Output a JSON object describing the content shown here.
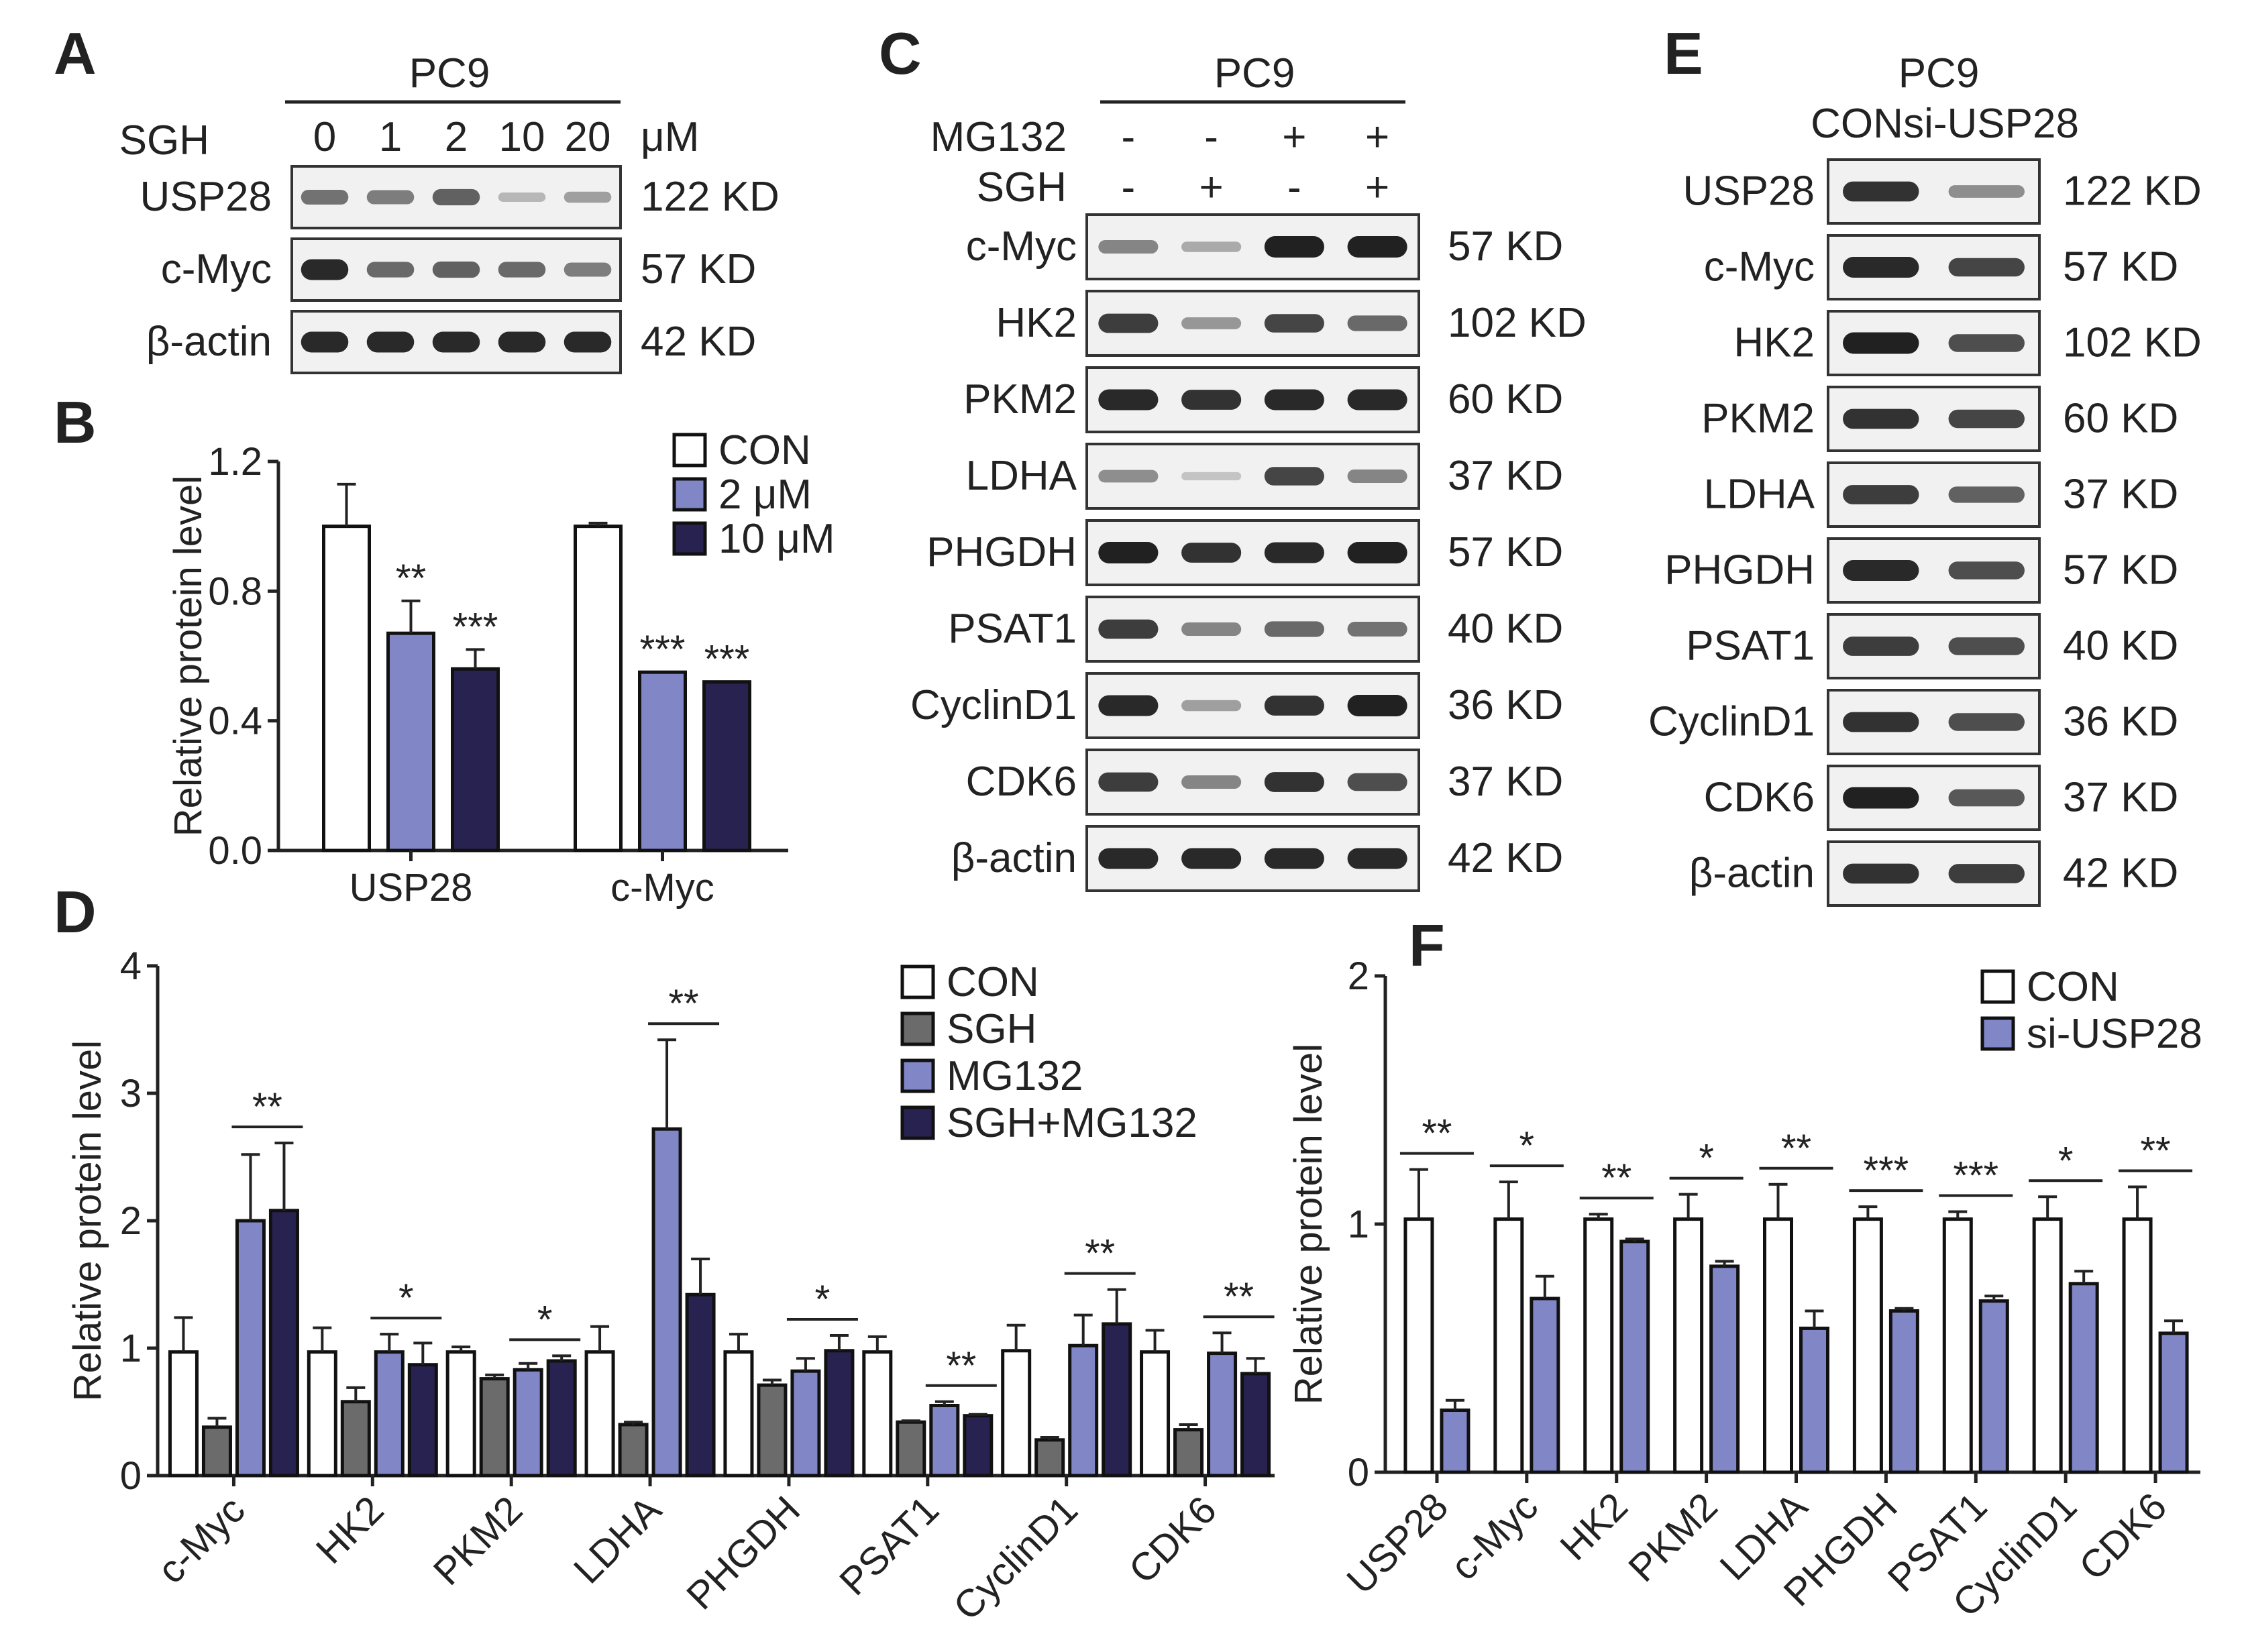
{
  "panel_labels": [
    "A",
    "B",
    "C",
    "D",
    "E",
    "F"
  ],
  "colors": {
    "con": "#ffffff",
    "sgh": "#6b6b6b",
    "mg132": "#8086c6",
    "sgh_mg132": "#272250",
    "si_usp28": "#8086c6",
    "band": "#1a1a1a"
  },
  "blot_a": {
    "cell_line": "PC9",
    "treatment_label": "SGH",
    "doses": [
      "0",
      "1",
      "2",
      "10",
      "20"
    ],
    "unit": "μM",
    "rows": [
      {
        "name": "USP28",
        "size": "122 KD",
        "intensity": [
          0.55,
          0.5,
          0.65,
          0.18,
          0.3
        ]
      },
      {
        "name": "c-Myc",
        "size": "57 KD",
        "intensity": [
          0.95,
          0.6,
          0.65,
          0.6,
          0.5
        ]
      },
      {
        "name": "β-actin",
        "size": "42 KD",
        "intensity": [
          0.95,
          0.95,
          0.95,
          0.95,
          0.95
        ]
      }
    ]
  },
  "blot_c": {
    "cell_line": "PC9",
    "conditions": [
      {
        "label": "MG132",
        "values": [
          "-",
          "-",
          "+",
          "+"
        ]
      },
      {
        "label": "SGH",
        "values": [
          "-",
          "+",
          "-",
          "+"
        ]
      }
    ],
    "rows": [
      {
        "name": "c-Myc",
        "size": "57 KD",
        "intensity": [
          0.45,
          0.25,
          1.0,
          1.0
        ]
      },
      {
        "name": "HK2",
        "size": "102 KD",
        "intensity": [
          0.85,
          0.35,
          0.8,
          0.6
        ]
      },
      {
        "name": "PKM2",
        "size": "60 KD",
        "intensity": [
          0.95,
          0.9,
          0.95,
          0.95
        ]
      },
      {
        "name": "LDHA",
        "size": "37 KD",
        "intensity": [
          0.4,
          0.1,
          0.8,
          0.45
        ]
      },
      {
        "name": "PHGDH",
        "size": "57 KD",
        "intensity": [
          1.0,
          0.9,
          0.95,
          1.0
        ]
      },
      {
        "name": "PSAT1",
        "size": "40 KD",
        "intensity": [
          0.85,
          0.45,
          0.6,
          0.55
        ]
      },
      {
        "name": "CyclinD1",
        "size": "36 KD",
        "intensity": [
          0.95,
          0.3,
          0.9,
          1.0
        ]
      },
      {
        "name": "CDK6",
        "size": "37 KD",
        "intensity": [
          0.85,
          0.45,
          0.9,
          0.75
        ]
      },
      {
        "name": "β-actin",
        "size": "42 KD",
        "intensity": [
          0.95,
          0.95,
          0.95,
          0.95
        ]
      }
    ]
  },
  "blot_e": {
    "cell_line": "PC9",
    "lanes": [
      "CON",
      "si-USP28"
    ],
    "rows": [
      {
        "name": "USP28",
        "size": "122 KD",
        "intensity": [
          0.9,
          0.4
        ]
      },
      {
        "name": "c-Myc",
        "size": "57 KD",
        "intensity": [
          0.95,
          0.8
        ]
      },
      {
        "name": "HK2",
        "size": "102 KD",
        "intensity": [
          1.0,
          0.75
        ]
      },
      {
        "name": "PKM2",
        "size": "60 KD",
        "intensity": [
          0.9,
          0.8
        ]
      },
      {
        "name": "LDHA",
        "size": "37 KD",
        "intensity": [
          0.85,
          0.65
        ]
      },
      {
        "name": "PHGDH",
        "size": "57 KD",
        "intensity": [
          0.95,
          0.75
        ]
      },
      {
        "name": "PSAT1",
        "size": "40 KD",
        "intensity": [
          0.85,
          0.75
        ]
      },
      {
        "name": "CyclinD1",
        "size": "36 KD",
        "intensity": [
          0.9,
          0.75
        ]
      },
      {
        "name": "CDK6",
        "size": "37 KD",
        "intensity": [
          1.0,
          0.7
        ]
      },
      {
        "name": "β-actin",
        "size": "42 KD",
        "intensity": [
          0.9,
          0.85
        ]
      }
    ]
  },
  "chart_data": [
    {
      "id": "B",
      "type": "bar",
      "ylabel": "Relative protein level",
      "ylim": [
        0,
        1.2
      ],
      "yticks": [
        "0.0",
        "0.4",
        "0.8",
        "1.2"
      ],
      "categories": [
        "USP28",
        "c-Myc"
      ],
      "series": [
        {
          "name": "CON",
          "values": [
            1.0,
            1.0
          ],
          "errors": [
            0.13,
            0.01
          ]
        },
        {
          "name": "2 μM",
          "values": [
            0.67,
            0.55
          ],
          "errors": [
            0.1,
            0.0
          ]
        },
        {
          "name": "10 μM",
          "values": [
            0.56,
            0.52
          ],
          "errors": [
            0.06,
            0.0
          ]
        }
      ],
      "significance": [
        [
          "",
          "**",
          "***"
        ],
        [
          "",
          "***",
          "***"
        ]
      ],
      "legend": "top-right"
    },
    {
      "id": "D",
      "type": "bar",
      "ylabel": "Relative protein level",
      "ylim": [
        0,
        4
      ],
      "yticks": [
        "0",
        "1",
        "2",
        "3",
        "4"
      ],
      "categories": [
        "c-Myc",
        "HK2",
        "PKM2",
        "LDHA",
        "PHGDH",
        "PSAT1",
        "CyclinD1",
        "CDK6"
      ],
      "series": [
        {
          "name": "CON",
          "values": [
            0.97,
            0.97,
            0.97,
            0.97,
            0.97,
            0.97,
            0.98,
            0.97
          ],
          "errors": [
            0.27,
            0.19,
            0.04,
            0.2,
            0.14,
            0.12,
            0.2,
            0.17
          ]
        },
        {
          "name": "SGH",
          "values": [
            0.38,
            0.58,
            0.76,
            0.4,
            0.71,
            0.42,
            0.28,
            0.36
          ],
          "errors": [
            0.07,
            0.11,
            0.03,
            0.02,
            0.04,
            0.01,
            0.02,
            0.04
          ]
        },
        {
          "name": "MG132",
          "values": [
            2.0,
            0.97,
            0.83,
            2.72,
            0.82,
            0.55,
            1.02,
            0.96
          ],
          "errors": [
            0.52,
            0.14,
            0.05,
            0.7,
            0.1,
            0.03,
            0.24,
            0.16
          ]
        },
        {
          "name": "SGH+MG132",
          "values": [
            2.08,
            0.87,
            0.9,
            1.42,
            0.98,
            0.47,
            1.19,
            0.8
          ],
          "errors": [
            0.53,
            0.17,
            0.04,
            0.28,
            0.12,
            0.01,
            0.27,
            0.12
          ]
        }
      ],
      "significance": [
        "**",
        "*",
        "*",
        "**",
        "*",
        "**",
        "**",
        "**"
      ],
      "legend": "top-right"
    },
    {
      "id": "F",
      "type": "bar",
      "ylabel": "Relative protein level",
      "ylim": [
        0,
        2
      ],
      "yticks": [
        "0",
        "1",
        "2"
      ],
      "categories": [
        "USP28",
        "c-Myc",
        "HK2",
        "PKM2",
        "LDHA",
        "PHGDH",
        "PSAT1",
        "CyclinD1",
        "CDK6"
      ],
      "series": [
        {
          "name": "CON",
          "values": [
            1.02,
            1.02,
            1.02,
            1.02,
            1.02,
            1.02,
            1.02,
            1.02,
            1.02
          ],
          "errors": [
            0.2,
            0.15,
            0.02,
            0.1,
            0.14,
            0.05,
            0.03,
            0.09,
            0.13
          ]
        },
        {
          "name": "si-USP28",
          "values": [
            0.25,
            0.7,
            0.93,
            0.83,
            0.58,
            0.65,
            0.69,
            0.76,
            0.56
          ],
          "errors": [
            0.04,
            0.09,
            0.01,
            0.02,
            0.07,
            0.01,
            0.02,
            0.05,
            0.05
          ]
        }
      ],
      "significance": [
        "**",
        "*",
        "**",
        "*",
        "**",
        "***",
        "***",
        "*",
        "**"
      ],
      "legend": "top-right"
    }
  ]
}
